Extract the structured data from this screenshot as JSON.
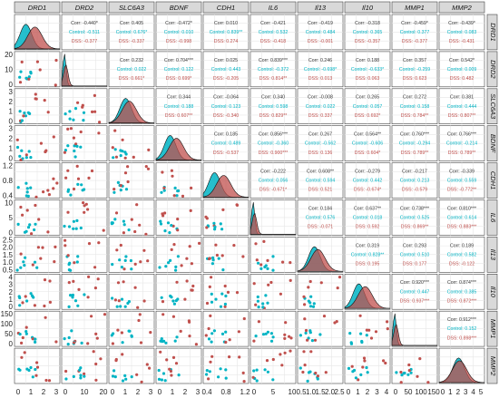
{
  "chart_data": {
    "type": "scatter-matrix",
    "variables": [
      "DRD1",
      "DRD2",
      "SLC6A3",
      "BDNF",
      "CDH1",
      "IL6",
      "Il13",
      "Il10",
      "MMP1",
      "MMP2"
    ],
    "groups": [
      {
        "name": "Control",
        "color": "#00b4c4"
      },
      {
        "name": "DSS",
        "color": "#c0504d"
      }
    ],
    "lower_triangle": "scatter points per group",
    "diagonal": "density per group",
    "upper_triangle_text": [
      {
        "row": "DRD1",
        "col": "DRD2",
        "corr": "Corr: -0.440*",
        "control": "Control: -0.511",
        "dss": "DSS: -0.377"
      },
      {
        "row": "DRD1",
        "col": "SLC6A3",
        "corr": "Corr: 0.405",
        "control": "Control: 0.676*",
        "dss": "DSS: -0.337"
      },
      {
        "row": "DRD1",
        "col": "BDNF",
        "corr": "Corr: -0.472*",
        "control": "Control: 0.010",
        "dss": "DSS: -0.998"
      },
      {
        "row": "DRD1",
        "col": "CDH1",
        "corr": "Corr: 0.010",
        "control": "Control: 0.839**",
        "dss": "DSS: 0.274"
      },
      {
        "row": "DRD1",
        "col": "IL6",
        "corr": "Corr: -0.421",
        "control": "Control: 0.532",
        "dss": "DSS: -0.418"
      },
      {
        "row": "DRD1",
        "col": "Il13",
        "corr": "Corr: -0.419",
        "control": "Control: 0.484",
        "dss": "DSS: -0.001"
      },
      {
        "row": "DRD1",
        "col": "Il10",
        "corr": "Corr: -0.318",
        "control": "Control: 0.365",
        "dss": "DSS: -0.357"
      },
      {
        "row": "DRD1",
        "col": "MMP1",
        "corr": "Corr: -0.459*",
        "control": "Control: 0.377",
        "dss": "DSS: -0.377"
      },
      {
        "row": "DRD1",
        "col": "MMP2",
        "corr": "Corr: -0.439*",
        "control": "Control: 0.083",
        "dss": "DSS: -0.431"
      },
      {
        "row": "DRD2",
        "col": "SLC6A3",
        "corr": "Corr: 0.232",
        "control": "Control: 0.022",
        "dss": "DSS: 0.661*"
      },
      {
        "row": "DRD2",
        "col": "BDNF",
        "corr": "Corr: 0.704***",
        "control": "Control: 0.122",
        "dss": "DSS: 0.699*"
      },
      {
        "row": "DRD2",
        "col": "CDH1",
        "corr": "Corr: 0.025",
        "control": "Control: 0.443",
        "dss": "DSS: -0.205"
      },
      {
        "row": "DRD2",
        "col": "IL6",
        "corr": "Corr: 0.839***",
        "control": "Control: -0.372",
        "dss": "DSS: 0.814**"
      },
      {
        "row": "DRD2",
        "col": "Il13",
        "corr": "Corr: 0.246",
        "control": "Control: -0.698*",
        "dss": "DSS: 0.013"
      },
      {
        "row": "DRD2",
        "col": "Il10",
        "corr": "Corr: 0.188",
        "control": "Control: -0.633*",
        "dss": "DSS: 0.063"
      },
      {
        "row": "DRD2",
        "col": "MMP1",
        "corr": "Corr: 0.357",
        "control": "Control: -0.259",
        "dss": "DSS: 0.623"
      },
      {
        "row": "DRD2",
        "col": "MMP2",
        "corr": "Corr: 0.542*",
        "control": "Control: 0.009",
        "dss": "DSS: 0.482"
      },
      {
        "row": "SLC6A3",
        "col": "BDNF",
        "corr": "Corr: 0.344",
        "control": "Control: 0.188",
        "dss": "DSS: 0.607**"
      },
      {
        "row": "SLC6A3",
        "col": "CDH1",
        "corr": "Corr: -0.064",
        "control": "Control: 0.123",
        "dss": "DSS: -0.340"
      },
      {
        "row": "SLC6A3",
        "col": "IL6",
        "corr": "Corr: 0.340",
        "control": "Control: 0.598",
        "dss": "DSS: 0.829**"
      },
      {
        "row": "SLC6A3",
        "col": "Il13",
        "corr": "Corr: -0.008",
        "control": "Control: 0.022",
        "dss": "DSS: 0.337"
      },
      {
        "row": "SLC6A3",
        "col": "Il10",
        "corr": "Corr: 0.265",
        "control": "Control: 0.057",
        "dss": "DSS: 0.692*"
      },
      {
        "row": "SLC6A3",
        "col": "MMP1",
        "corr": "Corr: 0.272",
        "control": "Control: 0.158",
        "dss": "DSS: 0.784**"
      },
      {
        "row": "SLC6A3",
        "col": "MMP2",
        "corr": "Corr: 0.381",
        "control": "Control: 0.444",
        "dss": "DSS: 0.807**"
      },
      {
        "row": "BDNF",
        "col": "CDH1",
        "corr": "Corr: 0.185",
        "control": "Control: 0.489",
        "dss": "DSS: -0.537"
      },
      {
        "row": "BDNF",
        "col": "IL6",
        "corr": "Corr: 0.856***",
        "control": "Control: -0.360",
        "dss": "DSS: 0.900***"
      },
      {
        "row": "BDNF",
        "col": "Il13",
        "corr": "Corr: 0.267",
        "control": "Control: -0.562",
        "dss": "DSS: 0.136"
      },
      {
        "row": "BDNF",
        "col": "Il10",
        "corr": "Corr: 0.564**",
        "control": "Control: -0.606",
        "dss": "DSS: 0.604*"
      },
      {
        "row": "BDNF",
        "col": "MMP1",
        "corr": "Corr: 0.760***",
        "control": "Control: -0.294",
        "dss": "DSS: 0.789**"
      },
      {
        "row": "BDNF",
        "col": "MMP2",
        "corr": "Corr: 0.766***",
        "control": "Control: -0.214",
        "dss": "DSS: 0.789**"
      },
      {
        "row": "CDH1",
        "col": "IL6",
        "corr": "Corr: -0.222",
        "control": "Control: 0.056",
        "dss": "DSS: -0.671*"
      },
      {
        "row": "CDH1",
        "col": "Il13",
        "corr": "Corr: 0.608**",
        "control": "Control: 0.594",
        "dss": "DSS: 0.521"
      },
      {
        "row": "CDH1",
        "col": "Il10",
        "corr": "Corr: -0.279",
        "control": "Control: 0.442",
        "dss": "DSS: -0.674*"
      },
      {
        "row": "CDH1",
        "col": "MMP1",
        "corr": "Corr: -0.217",
        "control": "Control: 0.213",
        "dss": "DSS: -0.579"
      },
      {
        "row": "CDH1",
        "col": "MMP2",
        "corr": "Corr: -0.339",
        "control": "Control: 0.559",
        "dss": "DSS: -0.772**"
      },
      {
        "row": "IL6",
        "col": "Il13",
        "corr": "Corr: 0.184",
        "control": "Control: 0.576",
        "dss": "DSS: -0.071"
      },
      {
        "row": "IL6",
        "col": "Il10",
        "corr": "Corr: 0.637**",
        "control": "Control: 0.018",
        "dss": "DSS: 0.592"
      },
      {
        "row": "IL6",
        "col": "MMP1",
        "corr": "Corr: 0.738***",
        "control": "Control: 0.525",
        "dss": "DSS: 0.869**"
      },
      {
        "row": "IL6",
        "col": "MMP2",
        "corr": "Corr: 0.810***",
        "control": "Control: 0.614",
        "dss": "DSS: 0.883***"
      },
      {
        "row": "Il13",
        "col": "Il10",
        "corr": "Corr: 0.319",
        "control": "Control: 0.828**",
        "dss": "DSS: 0.195"
      },
      {
        "row": "Il13",
        "col": "MMP1",
        "corr": "Corr: 0.293",
        "control": "Control: 0.510",
        "dss": "DSS: 0.177"
      },
      {
        "row": "Il13",
        "col": "MMP2",
        "corr": "Corr: 0.189",
        "control": "Control: 0.582",
        "dss": "DSS: -0.122"
      },
      {
        "row": "Il10",
        "col": "MMP1",
        "corr": "Corr: 0.920***",
        "control": "Control: 0.447",
        "dss": "DSS: 0.937***"
      },
      {
        "row": "Il10",
        "col": "MMP2",
        "corr": "Corr: 0.874***",
        "control": "Control: 0.385",
        "dss": "DSS: 0.872***"
      },
      {
        "row": "MMP1",
        "col": "MMP2",
        "corr": "Corr: 0.912***",
        "control": "Control: 0.152",
        "dss": "DSS: 0.898***"
      }
    ],
    "x_axis_ticks": [
      [
        "0",
        "1",
        "2",
        "3"
      ],
      [
        "0",
        "10",
        "20"
      ],
      [
        "0",
        "1",
        "2",
        "3"
      ],
      [
        "0",
        "1",
        "2",
        "3"
      ],
      [
        "0.4",
        "0.8",
        "1.2"
      ],
      [
        "0",
        "5",
        "10"
      ],
      [
        "0.5",
        "1.0",
        "1.5",
        "2.0",
        "2.5"
      ],
      [
        "0",
        "1",
        "2",
        "3",
        "4"
      ],
      [
        "0",
        "50",
        "100",
        "150"
      ],
      [
        "0",
        "1",
        "2",
        "3",
        "4",
        "5"
      ]
    ],
    "y_axis_ticks": [
      [],
      [
        "0",
        "10",
        "20"
      ],
      [
        "0",
        "1",
        "2",
        "3"
      ],
      [
        "0",
        "1",
        "2",
        "3"
      ],
      [
        "0.4",
        "0.8",
        "1.2"
      ],
      [
        "0",
        "5",
        "10"
      ],
      [
        "0.5",
        "1.0",
        "1.5",
        "2.0",
        "2.5"
      ],
      [
        "0",
        "1",
        "2",
        "3",
        "4"
      ],
      [
        "0",
        "50",
        "100",
        "150"
      ],
      []
    ],
    "grid": true
  }
}
